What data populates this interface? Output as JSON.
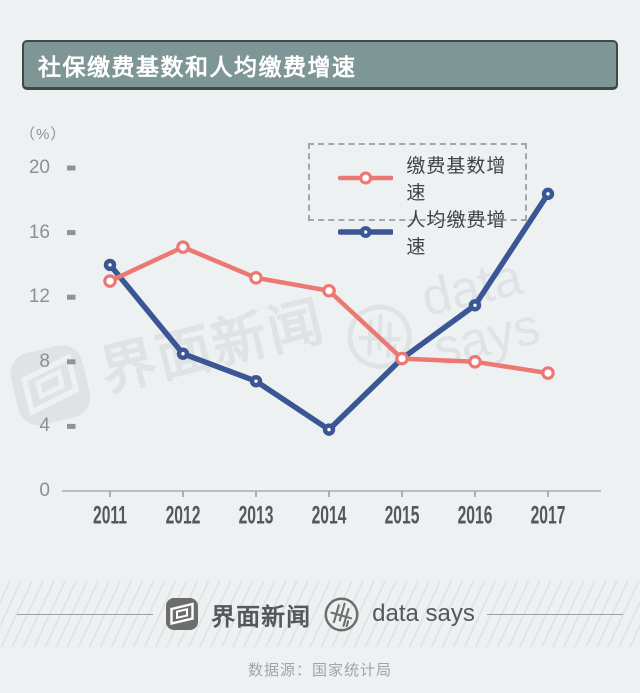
{
  "page": {
    "background": "#eef1f2"
  },
  "title": {
    "text": "社保缴费基数和人均缴费增速",
    "bar_color": "#7e9695",
    "border_color": "#3e4a49"
  },
  "chart_data": {
    "type": "line",
    "x": [
      "2011",
      "2012",
      "2013",
      "2014",
      "2015",
      "2016",
      "2017"
    ],
    "series": [
      {
        "name": "缴费基数增速",
        "color": "#ec7873",
        "marker": "open",
        "values": [
          13.0,
          15.1,
          13.2,
          12.4,
          8.2,
          8.0,
          7.3
        ]
      },
      {
        "name": "人均缴费增速",
        "color": "#3b5694",
        "marker": "filled",
        "values": [
          14.0,
          8.5,
          6.8,
          3.8,
          8.2,
          11.5,
          18.4
        ]
      }
    ],
    "title": "社保缴费基数和人均缴费增速",
    "xlabel": "",
    "ylabel": "（%）",
    "yticks": [
      0,
      4,
      8,
      12,
      16,
      20
    ],
    "ylim": [
      0,
      21
    ],
    "grid": false,
    "legend_position": "top-right",
    "axis_color": "#9aa0a1",
    "tick_square_color": "#8e9394"
  },
  "watermarks": {
    "jiemian": "界面新闻",
    "datasays": "data says"
  },
  "footer": {
    "brand": "界面新闻",
    "datasays": "data says",
    "source": "数据源：国家统计局"
  }
}
